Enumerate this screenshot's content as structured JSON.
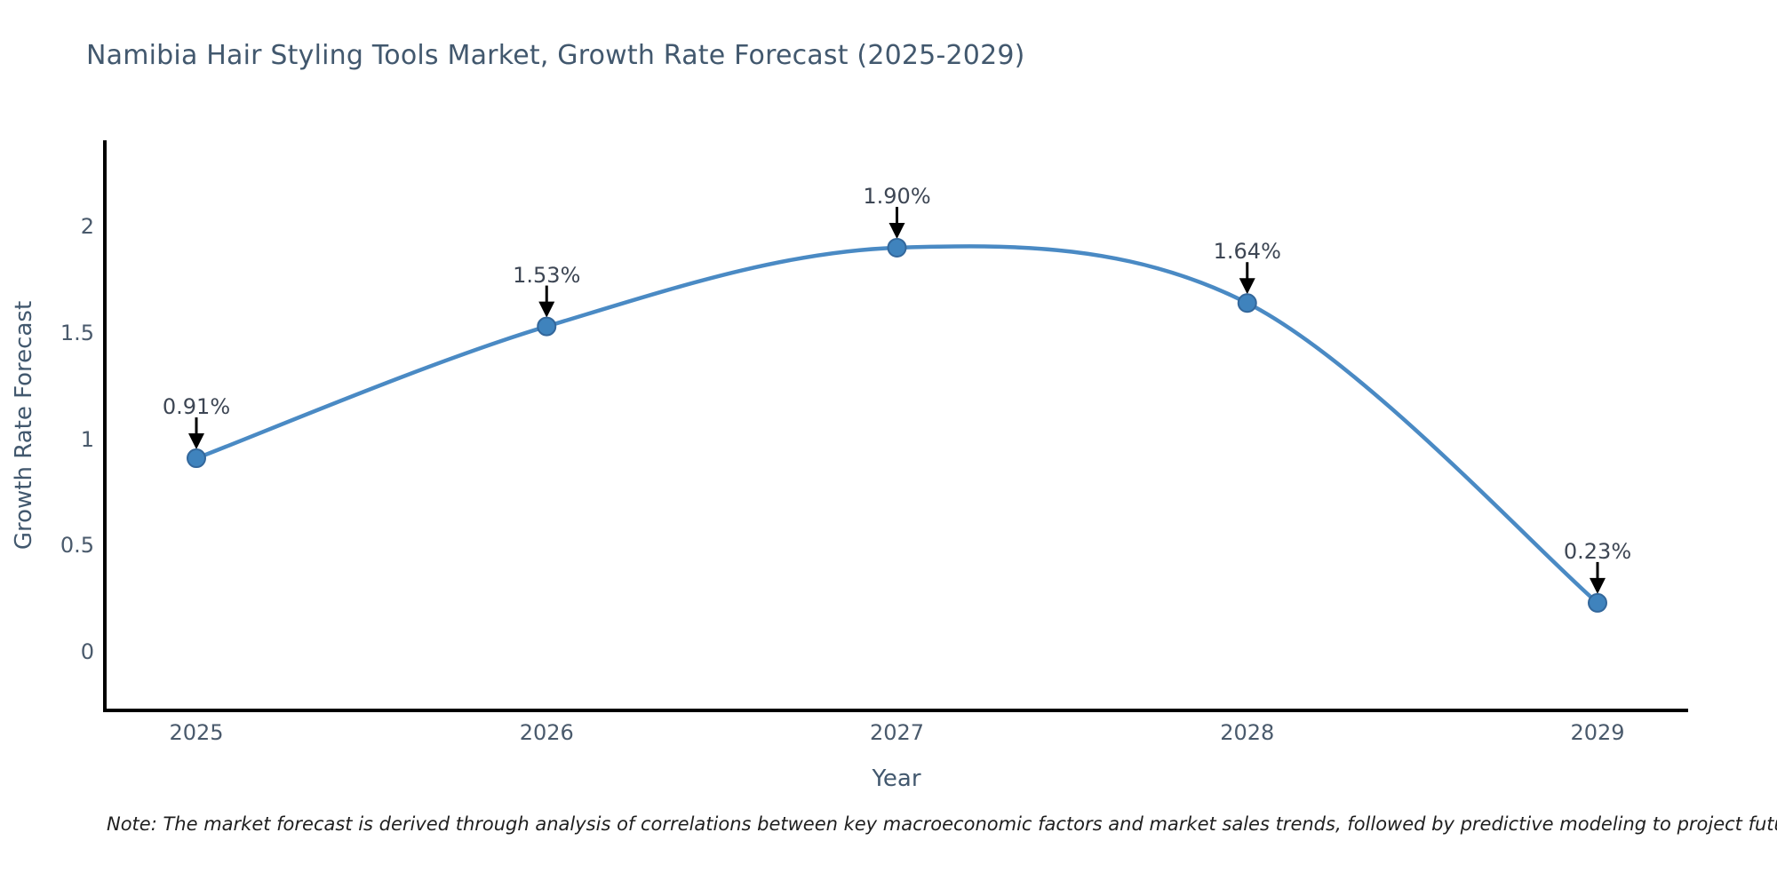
{
  "page": {
    "background": "#ffffff"
  },
  "note": "Note: The market forecast is derived through analysis of correlations between key macroeconomic factors and market sales trends, followed by predictive modeling to project future sales",
  "chart_data": {
    "type": "line",
    "curve": "spline",
    "title": "Namibia Hair Styling Tools Market, Growth Rate Forecast (2025-2029)",
    "xlabel": "Year",
    "ylabel": "Growth Rate Forecast",
    "categories": [
      "2025",
      "2026",
      "2027",
      "2028",
      "2029"
    ],
    "values": [
      0.91,
      1.53,
      1.9,
      1.64,
      0.23
    ],
    "point_labels": [
      "0.91%",
      "1.53%",
      "1.90%",
      "1.64%",
      "0.23%"
    ],
    "yticks": [
      "0",
      "0.5",
      "1",
      "1.5",
      "2"
    ],
    "ytick_values": [
      0,
      0.5,
      1,
      1.5,
      2
    ],
    "ylim": [
      -0.28,
      2.41
    ],
    "grid": false,
    "legend": false,
    "line_color": "#4a8ac4",
    "marker_color": "#3f83bd",
    "marker_edge_color": "#33679b",
    "axis_color": "#000000",
    "annotation_color": "#000000",
    "title_color": "#42586e",
    "tick_color": "#4a5a6c"
  }
}
